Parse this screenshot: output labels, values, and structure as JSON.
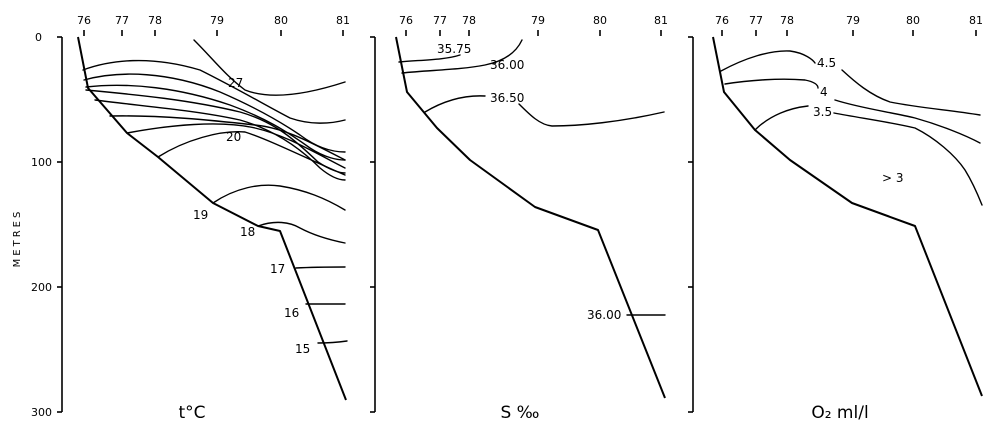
{
  "y_axis": {
    "title": "METRES",
    "ticks": [
      "0",
      "100",
      "200",
      "300"
    ]
  },
  "panels": [
    {
      "id": "temperature",
      "caption": "t°C",
      "x_ticks": [
        "76",
        "77",
        "78",
        "79",
        "80",
        "81"
      ],
      "labels": [
        "27",
        "20",
        "19",
        "18",
        "17",
        "16",
        "15"
      ]
    },
    {
      "id": "salinity",
      "caption": "S ‰",
      "x_ticks": [
        "76",
        "77",
        "78",
        "79",
        "80",
        "81"
      ],
      "labels": [
        "35.75",
        "36.00",
        "36.50",
        "36.00"
      ]
    },
    {
      "id": "oxygen",
      "caption": "O₂ ml/l",
      "x_ticks": [
        "76",
        "77",
        "78",
        "79",
        "80",
        "81"
      ],
      "labels": [
        "4.5",
        "4",
        "3.5",
        "> 3"
      ]
    }
  ]
}
